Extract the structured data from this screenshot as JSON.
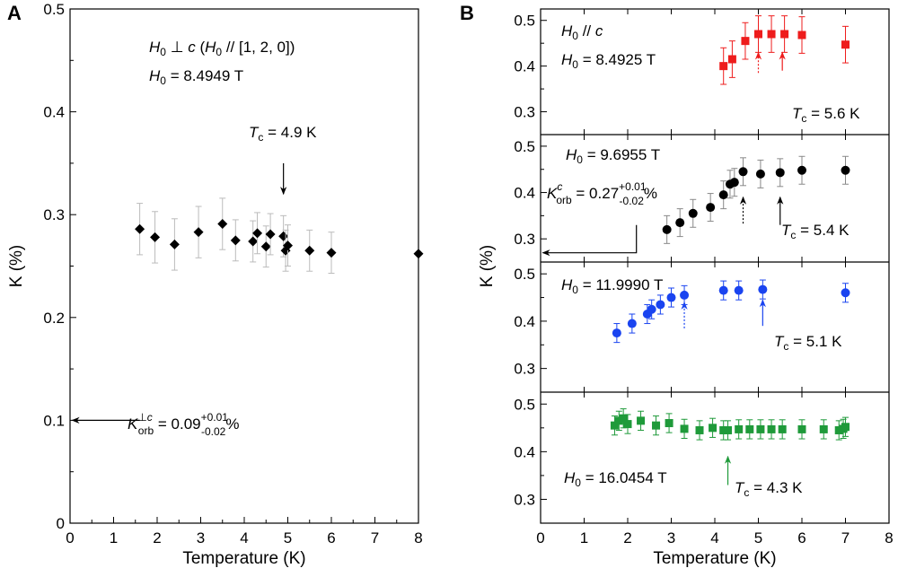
{
  "panel_a": {
    "label": "A",
    "annotation_field_line1": "H0 ⊥ c (H0 // [1, 2, 0])",
    "annotation_field_line2": "H0 = 8.4949 T",
    "annotation_tc": "Tc = 4.9 K",
    "annotation_korb": "K⊥c orb = 0.09 +0.01 -0.02 %"
  },
  "panel_b": {
    "label": "B",
    "subpanels": [
      {
        "annotation_orientation": "H0 // c",
        "annotation_field": "H0 = 8.4925 T",
        "annotation_tc": "Tc = 5.6 K"
      },
      {
        "annotation_field": "H0 = 9.6955 T",
        "annotation_tc": "Tc = 5.4 K",
        "annotation_korb": "Kc orb = 0.27 +0.01 -0.02 %"
      },
      {
        "annotation_field": "H0 = 11.9990 T",
        "annotation_tc": "Tc = 5.1 K"
      },
      {
        "annotation_field": "H0 = 16.0454 T",
        "annotation_tc": "Tc = 4.3 K"
      }
    ]
  },
  "colors": {
    "panel_a": "#000000",
    "sub1": "#ee1c1c",
    "sub2": "#000000",
    "sub3": "#1a44f0",
    "sub4": "#1f9a3a",
    "error_bar_a": "#bbbbbb",
    "error_bar_b2": "#888888"
  },
  "chart_data": [
    {
      "type": "scatter",
      "panel": "A",
      "marker": "diamond",
      "xlabel": "Temperature (K)",
      "ylabel": "K (%)",
      "xlim": [
        0,
        8
      ],
      "ylim": [
        0,
        0.5
      ],
      "xticks": [
        "0",
        "1",
        "2",
        "3",
        "4",
        "5",
        "6",
        "7",
        "8"
      ],
      "yticks": [
        "0",
        "0.1",
        "0.2",
        "0.3",
        "0.4",
        "0.5"
      ],
      "x": [
        1.6,
        1.95,
        2.4,
        2.95,
        3.5,
        3.8,
        4.2,
        4.3,
        4.5,
        4.6,
        4.9,
        4.95,
        5.0,
        5.5,
        6.0,
        8.0
      ],
      "y": [
        0.286,
        0.278,
        0.271,
        0.283,
        0.291,
        0.275,
        0.274,
        0.282,
        0.269,
        0.281,
        0.279,
        0.265,
        0.27,
        0.265,
        0.263,
        0.262
      ],
      "yerr": [
        0.025,
        0.025,
        0.025,
        0.025,
        0.025,
        0.02,
        0.02,
        0.02,
        0.02,
        0.02,
        0.02,
        0.02,
        0.02,
        0.02,
        0.02,
        0.0
      ],
      "tc_arrow": {
        "x": 4.9,
        "y_from": 0.35,
        "y_to": 0.32
      },
      "korb_arrow": {
        "y": 0.1,
        "x_from": 1.6,
        "x_to": 0.05
      }
    },
    {
      "type": "scatter",
      "panel": "B",
      "xlabel": "Temperature (K)",
      "ylabel": "K (%)",
      "xlim": [
        0,
        8
      ],
      "xticks": [
        "0",
        "1",
        "2",
        "3",
        "4",
        "5",
        "6",
        "7",
        "8"
      ],
      "subplots": [
        {
          "marker": "square",
          "ylim": [
            0.25,
            0.525
          ],
          "yticks": [
            "0.3",
            "0.4",
            "0.5"
          ],
          "x": [
            4.2,
            4.4,
            4.7,
            5.0,
            5.3,
            5.6,
            6.0,
            7.0
          ],
          "y": [
            0.4,
            0.415,
            0.455,
            0.47,
            0.47,
            0.47,
            0.468,
            0.447
          ],
          "yerr": [
            0.04,
            0.04,
            0.04,
            0.04,
            0.04,
            0.04,
            0.04,
            0.04
          ],
          "arrows": [
            {
              "x": 5.0,
              "y_from": 0.385,
              "y_to": 0.43,
              "dashed": true
            },
            {
              "x": 5.55,
              "y_from": 0.39,
              "y_to": 0.43,
              "dashed": false
            }
          ]
        },
        {
          "marker": "circle",
          "ylim": [
            0.25,
            0.525
          ],
          "yticks": [
            "0.3",
            "0.4",
            "0.5"
          ],
          "x": [
            2.9,
            3.2,
            3.5,
            3.9,
            4.2,
            4.35,
            4.45,
            4.65,
            5.05,
            5.5,
            6.0,
            7.0
          ],
          "y": [
            0.32,
            0.335,
            0.355,
            0.368,
            0.395,
            0.418,
            0.422,
            0.445,
            0.44,
            0.443,
            0.448,
            0.448
          ],
          "yerr": [
            0.03,
            0.03,
            0.03,
            0.03,
            0.03,
            0.03,
            0.03,
            0.03,
            0.03,
            0.03,
            0.03,
            0.03
          ],
          "arrows": [
            {
              "x": 4.65,
              "y_from": 0.333,
              "y_to": 0.39,
              "dashed": true
            },
            {
              "x": 5.5,
              "y_from": 0.33,
              "y_to": 0.39,
              "dashed": false
            }
          ],
          "korb_arrow": {
            "y": 0.27,
            "x_from": 2.2,
            "x_to": 0.05
          }
        },
        {
          "marker": "circle",
          "ylim": [
            0.25,
            0.525
          ],
          "yticks": [
            "0.3",
            "0.4",
            "0.5"
          ],
          "x": [
            1.75,
            2.1,
            2.45,
            2.55,
            2.75,
            3.0,
            3.3,
            4.2,
            4.55,
            5.1,
            7.0
          ],
          "y": [
            0.375,
            0.395,
            0.415,
            0.425,
            0.435,
            0.45,
            0.455,
            0.465,
            0.465,
            0.467,
            0.46
          ],
          "yerr": [
            0.02,
            0.02,
            0.02,
            0.02,
            0.02,
            0.02,
            0.02,
            0.02,
            0.02,
            0.02,
            0.02
          ],
          "arrows": [
            {
              "x": 3.3,
              "y_from": 0.385,
              "y_to": 0.44,
              "dashed": true
            },
            {
              "x": 5.1,
              "y_from": 0.39,
              "y_to": 0.445,
              "dashed": false
            }
          ]
        },
        {
          "marker": "square",
          "ylim": [
            0.25,
            0.525
          ],
          "yticks": [
            "0.3",
            "0.4",
            "0.5"
          ],
          "x": [
            1.7,
            1.8,
            1.9,
            2.0,
            2.3,
            2.65,
            2.95,
            3.3,
            3.65,
            3.95,
            4.2,
            4.3,
            4.55,
            4.8,
            5.05,
            5.3,
            5.55,
            6.0,
            6.5,
            6.85,
            6.95,
            7.0
          ],
          "y": [
            0.455,
            0.465,
            0.47,
            0.458,
            0.465,
            0.455,
            0.46,
            0.448,
            0.445,
            0.45,
            0.445,
            0.445,
            0.447,
            0.447,
            0.447,
            0.447,
            0.447,
            0.447,
            0.447,
            0.445,
            0.448,
            0.452
          ],
          "yerr": [
            0.02,
            0.02,
            0.02,
            0.02,
            0.02,
            0.02,
            0.02,
            0.02,
            0.02,
            0.02,
            0.02,
            0.02,
            0.02,
            0.02,
            0.02,
            0.02,
            0.02,
            0.02,
            0.02,
            0.02,
            0.02,
            0.02
          ],
          "arrows": [
            {
              "x": 4.3,
              "y_from": 0.33,
              "y_to": 0.39,
              "dashed": false
            }
          ]
        }
      ]
    }
  ]
}
